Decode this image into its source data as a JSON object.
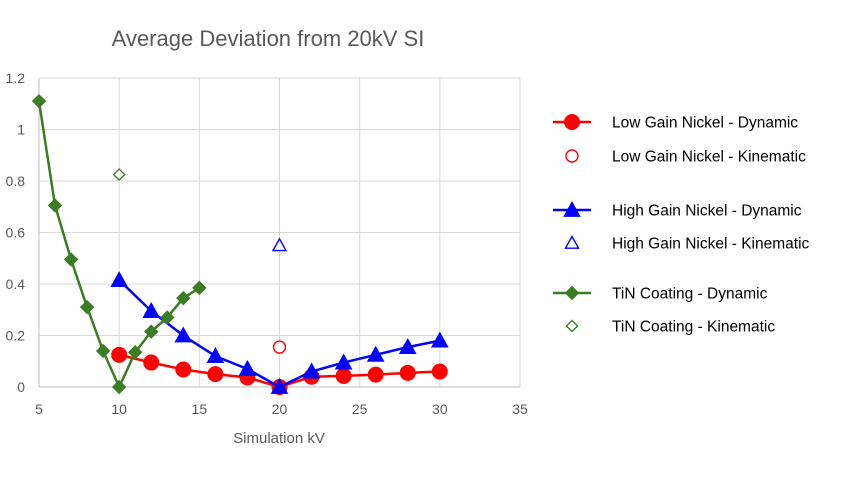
{
  "chart_data": {
    "type": "scatter",
    "title": "Average Deviation from 20kV SI",
    "xlabel": "Simulation kV",
    "ylabel": "",
    "xlim": [
      5,
      35
    ],
    "ylim": [
      0,
      1.2
    ],
    "x_ticks": [
      "5",
      "10",
      "15",
      "20",
      "25",
      "30",
      "35"
    ],
    "y_ticks": [
      "0",
      "0.2",
      "0.4",
      "0.6",
      "0.8",
      "1",
      "1.2"
    ],
    "grid": "vertical and horizontal",
    "legend_position": "right",
    "series": [
      {
        "name": "Low Gain Nickel - Dynamic",
        "color": "#ff0000",
        "marker": "circle-filled",
        "line": true,
        "points": [
          [
            10,
            0.125
          ],
          [
            12,
            0.095
          ],
          [
            14,
            0.068
          ],
          [
            16,
            0.05
          ],
          [
            18,
            0.037
          ],
          [
            20,
            0.0
          ],
          [
            22,
            0.04
          ],
          [
            24,
            0.043
          ],
          [
            26,
            0.048
          ],
          [
            28,
            0.055
          ],
          [
            30,
            0.06
          ]
        ]
      },
      {
        "name": "Low Gain Nickel - Kinematic",
        "color": "#ff0000",
        "marker": "circle-open",
        "line": false,
        "points": [
          [
            20,
            0.155
          ]
        ]
      },
      {
        "name": "High Gain Nickel - Dynamic",
        "color": "#0000ff",
        "marker": "triangle-filled",
        "line": true,
        "points": [
          [
            10,
            0.415
          ],
          [
            12,
            0.295
          ],
          [
            14,
            0.2
          ],
          [
            16,
            0.12
          ],
          [
            18,
            0.07
          ],
          [
            20,
            0.0
          ],
          [
            22,
            0.06
          ],
          [
            24,
            0.095
          ],
          [
            26,
            0.125
          ],
          [
            28,
            0.155
          ],
          [
            30,
            0.18
          ]
        ]
      },
      {
        "name": "High Gain Nickel - Kinematic",
        "color": "#0000ff",
        "marker": "triangle-open",
        "line": false,
        "points": [
          [
            20,
            0.55
          ]
        ]
      },
      {
        "name": "TiN Coating - Dynamic",
        "color": "#3a7d22",
        "marker": "diamond-filled",
        "line": true,
        "points": [
          [
            5,
            1.11
          ],
          [
            6,
            0.705
          ],
          [
            7,
            0.495
          ],
          [
            8,
            0.31
          ],
          [
            9,
            0.14
          ],
          [
            10,
            0.0
          ],
          [
            11,
            0.135
          ],
          [
            12,
            0.215
          ],
          [
            13,
            0.27
          ],
          [
            14,
            0.345
          ],
          [
            15,
            0.385
          ]
        ]
      },
      {
        "name": "TiN Coating - Kinematic",
        "color": "#3a7d22",
        "marker": "diamond-open",
        "line": false,
        "points": [
          [
            10,
            0.825
          ]
        ]
      }
    ]
  }
}
